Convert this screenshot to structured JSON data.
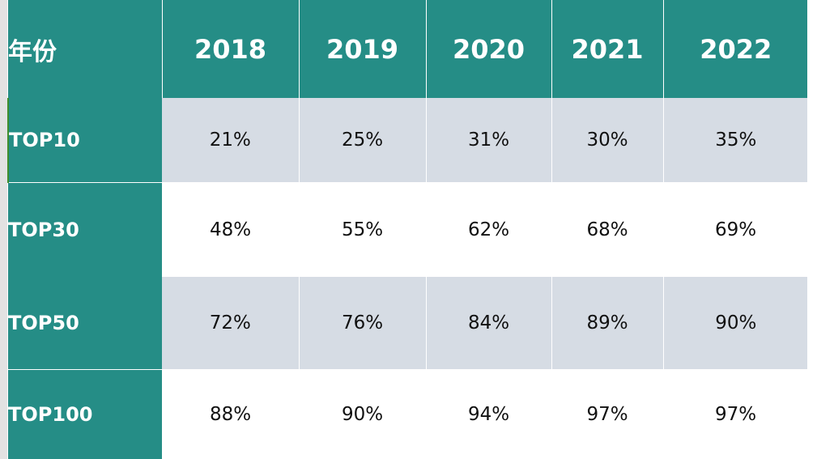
{
  "colors": {
    "header": "#258d86",
    "shaded_row": "#d6dce4",
    "plain_row": "#ffffff"
  },
  "chart_data": {
    "type": "table",
    "corner_label": "年份",
    "columns": [
      "2018",
      "2019",
      "2020",
      "2021",
      "2022"
    ],
    "rows": [
      {
        "label": "TOP10",
        "values": [
          "21%",
          "25%",
          "31%",
          "30%",
          "35%"
        ]
      },
      {
        "label": "TOP30",
        "values": [
          "48%",
          "55%",
          "62%",
          "68%",
          "69%"
        ]
      },
      {
        "label": "TOP50",
        "values": [
          "72%",
          "76%",
          "84%",
          "89%",
          "90%"
        ]
      },
      {
        "label": "TOP100",
        "values": [
          "88%",
          "90%",
          "94%",
          "97%",
          "97%"
        ]
      }
    ]
  }
}
